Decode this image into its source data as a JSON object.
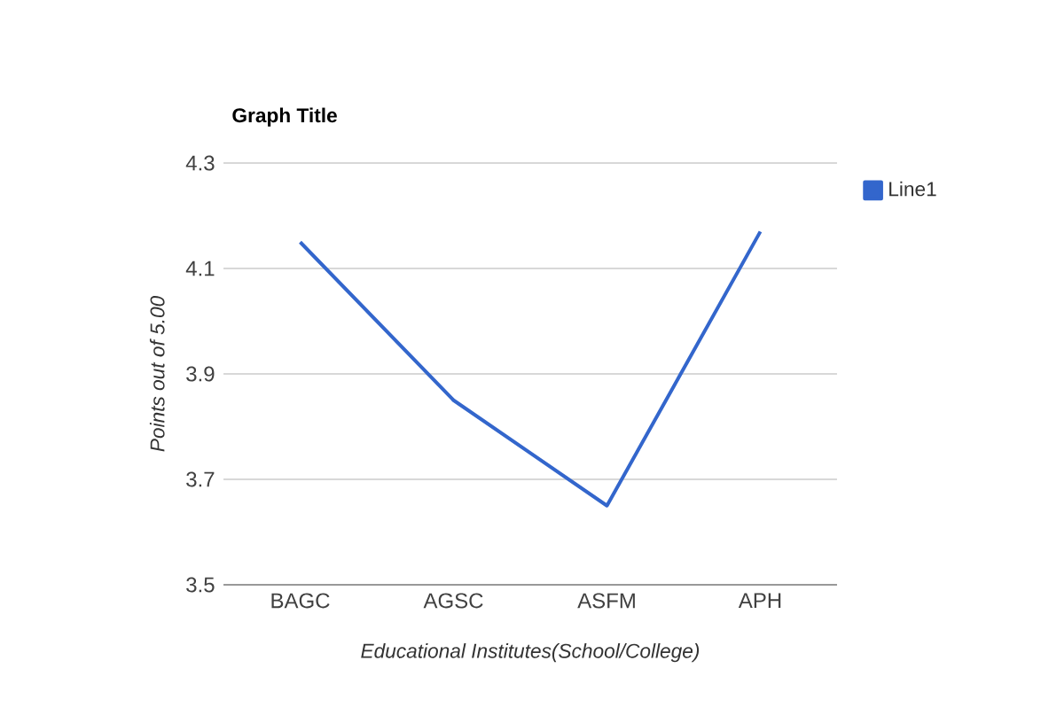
{
  "chart_data": {
    "type": "line",
    "title": "Graph Title",
    "xlabel": "Educational Institutes(School/College)",
    "ylabel": "Points out of 5.00",
    "categories": [
      "BAGC",
      "AGSC",
      "ASFM",
      "APH"
    ],
    "series": [
      {
        "name": "Line1",
        "color": "#3366cc",
        "values": [
          4.15,
          3.85,
          3.65,
          4.17
        ]
      }
    ],
    "ylim": [
      3.5,
      4.3
    ],
    "yticks": [
      3.5,
      3.7,
      3.9,
      4.1,
      4.3
    ],
    "grid": "y",
    "legend": "right",
    "marker": "none",
    "line_style": "solid"
  }
}
